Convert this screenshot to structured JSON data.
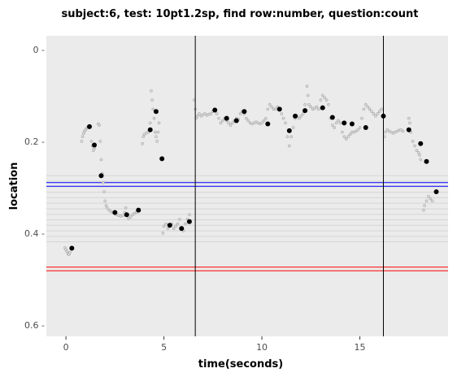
{
  "chart_data": {
    "type": "scatter",
    "title": "subject:6, test: 10pt1.2sp, find row:number, question:count",
    "xlabel": "time(seconds)",
    "ylabel": "location",
    "xlim": [
      -1.0,
      19.5
    ],
    "ylim": [
      -0.03,
      0.625
    ],
    "y_reversed": true,
    "x_ticks": [
      0,
      5,
      10,
      15
    ],
    "x_tick_labels": [
      "0",
      "5",
      "10",
      "15"
    ],
    "y_ticks": [
      0,
      0.2,
      0.4,
      0.6
    ],
    "y_tick_labels": [
      "0 -",
      "0.2 -",
      "0.4 -",
      "0.6 -"
    ],
    "grid": false,
    "panel_background": "#ebebeb",
    "vertical_lines": [
      6.6,
      16.2
    ],
    "horizontal_lines": [
      {
        "y": 0.29,
        "color": "#0000ff"
      },
      {
        "y": 0.298,
        "color": "#0000ff"
      },
      {
        "y": 0.474,
        "color": "#ff0000"
      },
      {
        "y": 0.482,
        "color": "#ff0000"
      }
    ],
    "row_band_lines": {
      "from": 0.275,
      "to": 0.43,
      "step": 0.012,
      "color": "#d6d6d6"
    },
    "gaze_trace": [
      [
        -0.05,
        0.432
      ],
      [
        0.0,
        0.436
      ],
      [
        0.05,
        0.44
      ],
      [
        0.1,
        0.445
      ],
      [
        0.15,
        0.447
      ],
      [
        0.2,
        0.442
      ],
      [
        0.8,
        0.2
      ],
      [
        0.85,
        0.19
      ],
      [
        0.9,
        0.183
      ],
      [
        0.95,
        0.178
      ],
      [
        1.0,
        0.175
      ],
      [
        1.05,
        0.172
      ],
      [
        1.1,
        0.17
      ],
      [
        1.15,
        0.168
      ],
      [
        1.2,
        0.169
      ],
      [
        1.3,
        0.2
      ],
      [
        1.35,
        0.21
      ],
      [
        1.4,
        0.22
      ],
      [
        1.45,
        0.215
      ],
      [
        1.65,
        0.162
      ],
      [
        1.7,
        0.165
      ],
      [
        1.75,
        0.2
      ],
      [
        1.8,
        0.24
      ],
      [
        1.85,
        0.27
      ],
      [
        1.9,
        0.29
      ],
      [
        1.95,
        0.31
      ],
      [
        2.0,
        0.33
      ],
      [
        2.05,
        0.34
      ],
      [
        2.1,
        0.345
      ],
      [
        2.2,
        0.35
      ],
      [
        2.3,
        0.353
      ],
      [
        2.4,
        0.355
      ],
      [
        2.5,
        0.358
      ],
      [
        2.6,
        0.36
      ],
      [
        2.7,
        0.362
      ],
      [
        2.8,
        0.363
      ],
      [
        2.9,
        0.362
      ],
      [
        3.0,
        0.355
      ],
      [
        3.05,
        0.345
      ],
      [
        3.1,
        0.36
      ],
      [
        3.2,
        0.368
      ],
      [
        3.3,
        0.365
      ],
      [
        3.4,
        0.36
      ],
      [
        3.5,
        0.357
      ],
      [
        3.6,
        0.355
      ],
      [
        3.9,
        0.205
      ],
      [
        3.95,
        0.19
      ],
      [
        4.0,
        0.185
      ],
      [
        4.1,
        0.182
      ],
      [
        4.2,
        0.18
      ],
      [
        4.3,
        0.16
      ],
      [
        4.35,
        0.09
      ],
      [
        4.4,
        0.11
      ],
      [
        4.45,
        0.13
      ],
      [
        4.5,
        0.15
      ],
      [
        4.55,
        0.18
      ],
      [
        4.6,
        0.19
      ],
      [
        4.65,
        0.2
      ],
      [
        4.7,
        0.18
      ],
      [
        4.75,
        0.16
      ],
      [
        4.95,
        0.4
      ],
      [
        5.0,
        0.385
      ],
      [
        5.1,
        0.38
      ],
      [
        5.2,
        0.39
      ],
      [
        5.3,
        0.385
      ],
      [
        5.4,
        0.38
      ],
      [
        5.5,
        0.39
      ],
      [
        5.6,
        0.385
      ],
      [
        5.7,
        0.38
      ],
      [
        5.8,
        0.37
      ],
      [
        5.9,
        0.39
      ],
      [
        6.0,
        0.395
      ],
      [
        6.1,
        0.38
      ],
      [
        6.2,
        0.37
      ],
      [
        6.3,
        0.36
      ],
      [
        6.55,
        0.11
      ],
      [
        6.6,
        0.13
      ],
      [
        6.65,
        0.15
      ],
      [
        6.7,
        0.145
      ],
      [
        6.8,
        0.14
      ],
      [
        6.9,
        0.145
      ],
      [
        7.0,
        0.142
      ],
      [
        7.1,
        0.14
      ],
      [
        7.2,
        0.143
      ],
      [
        7.3,
        0.141
      ],
      [
        7.4,
        0.14
      ],
      [
        7.5,
        0.135
      ],
      [
        7.6,
        0.13
      ],
      [
        7.7,
        0.14
      ],
      [
        7.8,
        0.15
      ],
      [
        7.9,
        0.16
      ],
      [
        8.0,
        0.155
      ],
      [
        8.1,
        0.15
      ],
      [
        8.2,
        0.155
      ],
      [
        8.3,
        0.16
      ],
      [
        8.4,
        0.165
      ],
      [
        8.5,
        0.16
      ],
      [
        8.6,
        0.155
      ],
      [
        8.7,
        0.15
      ],
      [
        8.8,
        0.152
      ],
      [
        8.9,
        0.14
      ],
      [
        9.0,
        0.135
      ],
      [
        9.1,
        0.14
      ],
      [
        9.2,
        0.15
      ],
      [
        9.3,
        0.155
      ],
      [
        9.4,
        0.16
      ],
      [
        9.5,
        0.162
      ],
      [
        9.6,
        0.16
      ],
      [
        9.7,
        0.158
      ],
      [
        9.8,
        0.16
      ],
      [
        9.9,
        0.162
      ],
      [
        10.0,
        0.16
      ],
      [
        10.1,
        0.155
      ],
      [
        10.2,
        0.15
      ],
      [
        10.3,
        0.13
      ],
      [
        10.4,
        0.12
      ],
      [
        10.5,
        0.125
      ],
      [
        10.6,
        0.13
      ],
      [
        10.7,
        0.13
      ],
      [
        10.8,
        0.125
      ],
      [
        10.9,
        0.13
      ],
      [
        11.0,
        0.14
      ],
      [
        11.1,
        0.15
      ],
      [
        11.2,
        0.16
      ],
      [
        11.3,
        0.19
      ],
      [
        11.4,
        0.21
      ],
      [
        11.5,
        0.19
      ],
      [
        11.6,
        0.17
      ],
      [
        11.7,
        0.15
      ],
      [
        11.8,
        0.145
      ],
      [
        11.9,
        0.15
      ],
      [
        12.0,
        0.145
      ],
      [
        12.1,
        0.14
      ],
      [
        12.2,
        0.12
      ],
      [
        12.3,
        0.08
      ],
      [
        12.35,
        0.1
      ],
      [
        12.4,
        0.12
      ],
      [
        12.5,
        0.125
      ],
      [
        12.6,
        0.13
      ],
      [
        12.7,
        0.128
      ],
      [
        12.8,
        0.125
      ],
      [
        12.9,
        0.13
      ],
      [
        13.0,
        0.11
      ],
      [
        13.1,
        0.1
      ],
      [
        13.2,
        0.105
      ],
      [
        13.3,
        0.11
      ],
      [
        13.4,
        0.12
      ],
      [
        13.5,
        0.15
      ],
      [
        13.6,
        0.165
      ],
      [
        13.7,
        0.17
      ],
      [
        13.8,
        0.16
      ],
      [
        13.9,
        0.155
      ],
      [
        14.0,
        0.16
      ],
      [
        14.1,
        0.18
      ],
      [
        14.2,
        0.19
      ],
      [
        14.3,
        0.195
      ],
      [
        14.4,
        0.19
      ],
      [
        14.5,
        0.185
      ],
      [
        14.6,
        0.18
      ],
      [
        14.7,
        0.18
      ],
      [
        14.8,
        0.178
      ],
      [
        14.9,
        0.175
      ],
      [
        15.0,
        0.17
      ],
      [
        15.1,
        0.15
      ],
      [
        15.2,
        0.13
      ],
      [
        15.3,
        0.12
      ],
      [
        15.4,
        0.125
      ],
      [
        15.5,
        0.13
      ],
      [
        15.6,
        0.135
      ],
      [
        15.7,
        0.14
      ],
      [
        15.8,
        0.145
      ],
      [
        15.9,
        0.14
      ],
      [
        16.0,
        0.135
      ],
      [
        16.1,
        0.13
      ],
      [
        16.25,
        0.19
      ],
      [
        16.3,
        0.18
      ],
      [
        16.4,
        0.175
      ],
      [
        16.5,
        0.178
      ],
      [
        16.6,
        0.18
      ],
      [
        16.7,
        0.182
      ],
      [
        16.8,
        0.18
      ],
      [
        16.9,
        0.178
      ],
      [
        17.0,
        0.176
      ],
      [
        17.1,
        0.175
      ],
      [
        17.2,
        0.178
      ],
      [
        17.5,
        0.15
      ],
      [
        17.55,
        0.16
      ],
      [
        17.6,
        0.18
      ],
      [
        17.7,
        0.2
      ],
      [
        17.8,
        0.21
      ],
      [
        17.9,
        0.22
      ],
      [
        18.0,
        0.225
      ],
      [
        18.05,
        0.23
      ],
      [
        18.1,
        0.24
      ],
      [
        18.25,
        0.35
      ],
      [
        18.3,
        0.34
      ],
      [
        18.4,
        0.33
      ],
      [
        18.5,
        0.32
      ],
      [
        18.6,
        0.325
      ],
      [
        18.7,
        0.33
      ]
    ],
    "fixations": [
      [
        0.3,
        0.433
      ],
      [
        1.2,
        0.168
      ],
      [
        1.45,
        0.208
      ],
      [
        1.8,
        0.275
      ],
      [
        2.5,
        0.355
      ],
      [
        3.1,
        0.36
      ],
      [
        3.7,
        0.35
      ],
      [
        4.3,
        0.175
      ],
      [
        4.6,
        0.135
      ],
      [
        4.9,
        0.238
      ],
      [
        5.3,
        0.383
      ],
      [
        5.9,
        0.39
      ],
      [
        6.3,
        0.375
      ],
      [
        7.6,
        0.132
      ],
      [
        8.2,
        0.15
      ],
      [
        8.7,
        0.155
      ],
      [
        9.1,
        0.135
      ],
      [
        10.3,
        0.162
      ],
      [
        10.9,
        0.13
      ],
      [
        11.4,
        0.177
      ],
      [
        11.7,
        0.145
      ],
      [
        12.2,
        0.133
      ],
      [
        13.1,
        0.127
      ],
      [
        13.6,
        0.148
      ],
      [
        14.2,
        0.16
      ],
      [
        14.6,
        0.162
      ],
      [
        15.3,
        0.17
      ],
      [
        16.2,
        0.145
      ],
      [
        17.5,
        0.175
      ],
      [
        18.1,
        0.205
      ],
      [
        18.4,
        0.244
      ],
      [
        18.9,
        0.31
      ]
    ]
  }
}
